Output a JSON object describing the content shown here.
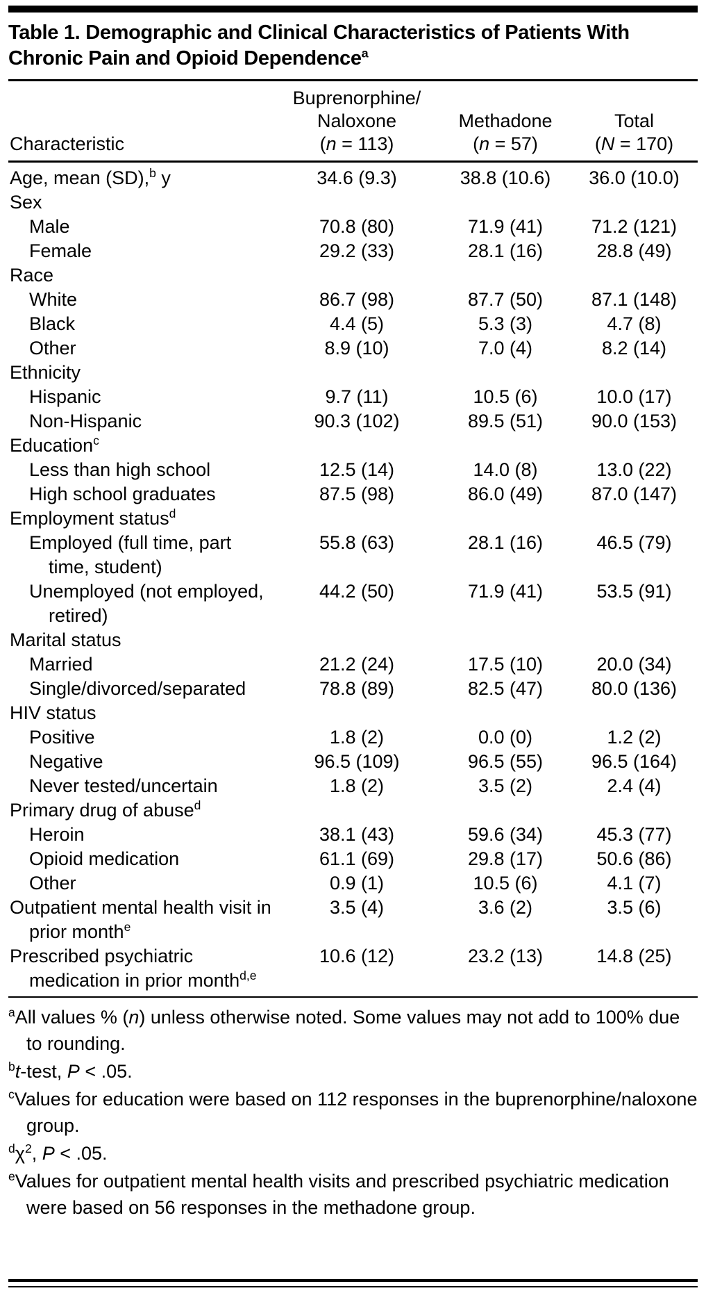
{
  "title": "Table 1. Demographic and Clinical Characteristics of Patients With Chronic Pain and Opioid Dependence^{a}",
  "columns": [
    {
      "id": "characteristic",
      "align": "left",
      "lines": [
        "Characteristic"
      ]
    },
    {
      "id": "buprenorphine-naloxone",
      "align": "center",
      "lines": [
        "Buprenorphine/",
        "Naloxone",
        "(~{n} = 113)"
      ]
    },
    {
      "id": "methadone",
      "align": "center",
      "lines": [
        "Methadone",
        "(~{n} = 57)"
      ]
    },
    {
      "id": "total",
      "align": "center",
      "lines": [
        "Total",
        "(~{N} = 170)"
      ]
    }
  ],
  "rows": [
    {
      "label": "Age, mean (SD),^{b} y",
      "indent": 0,
      "values": [
        "34.6 (9.3)",
        "38.8 (10.6)",
        "36.0 (10.0)"
      ]
    },
    {
      "label": "Sex",
      "indent": 0,
      "values": null
    },
    {
      "label": "Male",
      "indent": 1,
      "values": [
        "70.8 (80)",
        "71.9 (41)",
        "71.2 (121)"
      ]
    },
    {
      "label": "Female",
      "indent": 1,
      "values": [
        "29.2 (33)",
        "28.1 (16)",
        "28.8 (49)"
      ]
    },
    {
      "label": "Race",
      "indent": 0,
      "values": null
    },
    {
      "label": "White",
      "indent": 1,
      "values": [
        "86.7 (98)",
        "87.7 (50)",
        "87.1 (148)"
      ]
    },
    {
      "label": "Black",
      "indent": 1,
      "values": [
        "4.4 (5)",
        "5.3 (3)",
        "4.7 (8)"
      ]
    },
    {
      "label": "Other",
      "indent": 1,
      "values": [
        "8.9 (10)",
        "7.0 (4)",
        "8.2 (14)"
      ]
    },
    {
      "label": "Ethnicity",
      "indent": 0,
      "values": null
    },
    {
      "label": "Hispanic",
      "indent": 1,
      "values": [
        "9.7 (11)",
        "10.5 (6)",
        "10.0 (17)"
      ]
    },
    {
      "label": "Non-Hispanic",
      "indent": 1,
      "values": [
        "90.3 (102)",
        "89.5 (51)",
        "90.0 (153)"
      ]
    },
    {
      "label": "Education^{c}",
      "indent": 0,
      "values": null
    },
    {
      "label": "Less than high school",
      "indent": 1,
      "values": [
        "12.5 (14)",
        "14.0 (8)",
        "13.0 (22)"
      ]
    },
    {
      "label": "High school graduates",
      "indent": 1,
      "values": [
        "87.5 (98)",
        "86.0 (49)",
        "87.0 (147)"
      ]
    },
    {
      "label": "Employment status^{d}",
      "indent": 0,
      "values": null
    },
    {
      "label": "Employed (full time, part time, student)",
      "indent": 1,
      "values": [
        "55.8 (63)",
        "28.1 (16)",
        "46.5 (79)"
      ]
    },
    {
      "label": "Unemployed (not employed, retired)",
      "indent": 1,
      "values": [
        "44.2 (50)",
        "71.9 (41)",
        "53.5 (91)"
      ]
    },
    {
      "label": "Marital status",
      "indent": 0,
      "values": null
    },
    {
      "label": "Married",
      "indent": 1,
      "values": [
        "21.2 (24)",
        "17.5 (10)",
        "20.0 (34)"
      ]
    },
    {
      "label": "Single/divorced/separated",
      "indent": 1,
      "values": [
        "78.8 (89)",
        "82.5 (47)",
        "80.0 (136)"
      ]
    },
    {
      "label": "HIV status",
      "indent": 0,
      "values": null
    },
    {
      "label": "Positive",
      "indent": 1,
      "values": [
        "1.8 (2)",
        "0.0 (0)",
        "1.2 (2)"
      ]
    },
    {
      "label": "Negative",
      "indent": 1,
      "values": [
        "96.5 (109)",
        "96.5 (55)",
        "96.5 (164)"
      ]
    },
    {
      "label": "Never tested/uncertain",
      "indent": 1,
      "values": [
        "1.8 (2)",
        "3.5 (2)",
        "2.4 (4)"
      ]
    },
    {
      "label": "Primary drug of abuse^{d}",
      "indent": 0,
      "values": null
    },
    {
      "label": "Heroin",
      "indent": 1,
      "values": [
        "38.1 (43)",
        "59.6 (34)",
        "45.3 (77)"
      ]
    },
    {
      "label": "Opioid medication",
      "indent": 1,
      "values": [
        "61.1 (69)",
        "29.8 (17)",
        "50.6 (86)"
      ]
    },
    {
      "label": "Other",
      "indent": 1,
      "values": [
        "0.9 (1)",
        "10.5 (6)",
        "4.1 (7)"
      ]
    },
    {
      "label": "Outpatient mental health visit in prior month^{e}",
      "indent": 0,
      "values": [
        "3.5 (4)",
        "3.6 (2)",
        "3.5 (6)"
      ]
    },
    {
      "label": "Prescribed psychiatric medication in prior month^{d,e}",
      "indent": 0,
      "values": [
        "10.6 (12)",
        "23.2 (13)",
        "14.8 (25)"
      ]
    }
  ],
  "footnotes": [
    "^{a}All values % (~{n}) unless otherwise noted. Some values may not add to 100% due to rounding.",
    "^{b}~{t}-test, ~{P} < .05.",
    "^{c}Values for education were based on 112 responses in the buprenorphine/naloxone group.",
    "^{d}χ^{2}, ~{P} < .05.",
    "^{e}Values for outpatient mental health visits and prescribed psychiatric medication were based on 56 responses in the methadone group."
  ],
  "colors": {
    "rule": "#000000",
    "text": "#000000",
    "background": "#ffffff"
  }
}
